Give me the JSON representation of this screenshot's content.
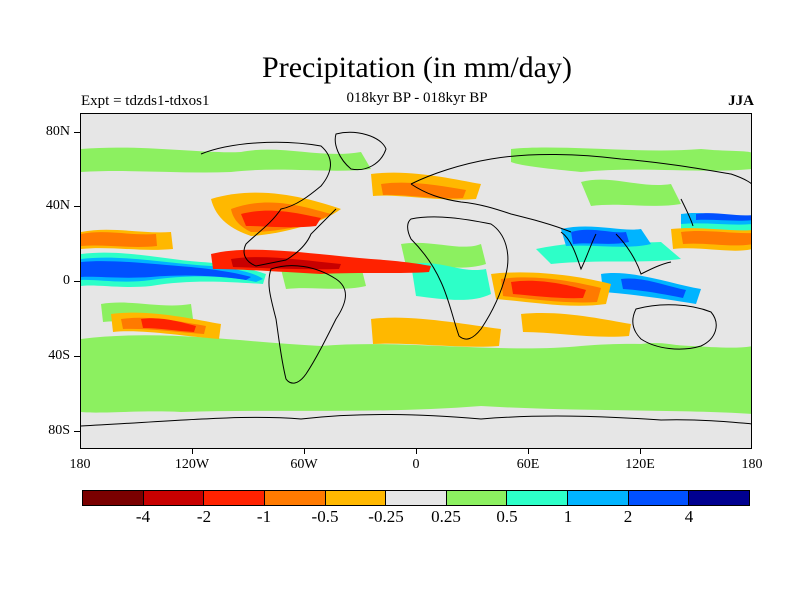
{
  "title": "Precipitation (in mm/day)",
  "subtitle": "018kyr BP - 018kyr BP",
  "experiment_label": "Expt = tdzds1-tdxos1",
  "season": "JJA",
  "map": {
    "latitude_labels": [
      "80N",
      "40N",
      "0",
      "40S",
      "80S"
    ],
    "longitude_labels": [
      "180",
      "120W",
      "60W",
      "0",
      "60E",
      "120E",
      "180"
    ],
    "background_color": "#e6e6e6",
    "coastline_color": "#000000"
  },
  "colorbar": {
    "colors": [
      "#7a0000",
      "#c80000",
      "#ff2200",
      "#ff7a00",
      "#ffb800",
      "#e6e6e6",
      "#8cf060",
      "#2dffc8",
      "#00b4ff",
      "#0050ff",
      "#000090"
    ],
    "labels": [
      "-4",
      "-2",
      "-1",
      "-0.5",
      "-0.25",
      "0.25",
      "0.5",
      "1",
      "2",
      "4"
    ]
  }
}
